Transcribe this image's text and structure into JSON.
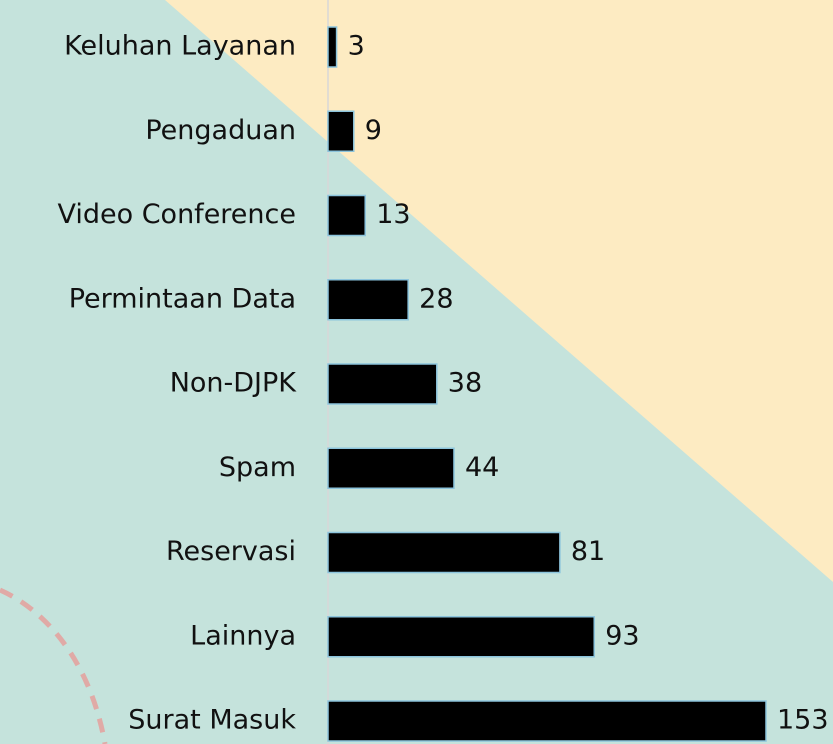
{
  "chart_data": {
    "type": "bar",
    "orientation": "horizontal",
    "categories": [
      "Keluhan Layanan",
      "Pengaduan",
      "Video Conference",
      "Permintaan Data",
      "Non-DJPK",
      "Spam",
      "Reservasi",
      "Lainnya",
      "Surat Masuk"
    ],
    "values": [
      3,
      9,
      13,
      28,
      38,
      44,
      81,
      93,
      153
    ],
    "color": "#000000"
  }
}
